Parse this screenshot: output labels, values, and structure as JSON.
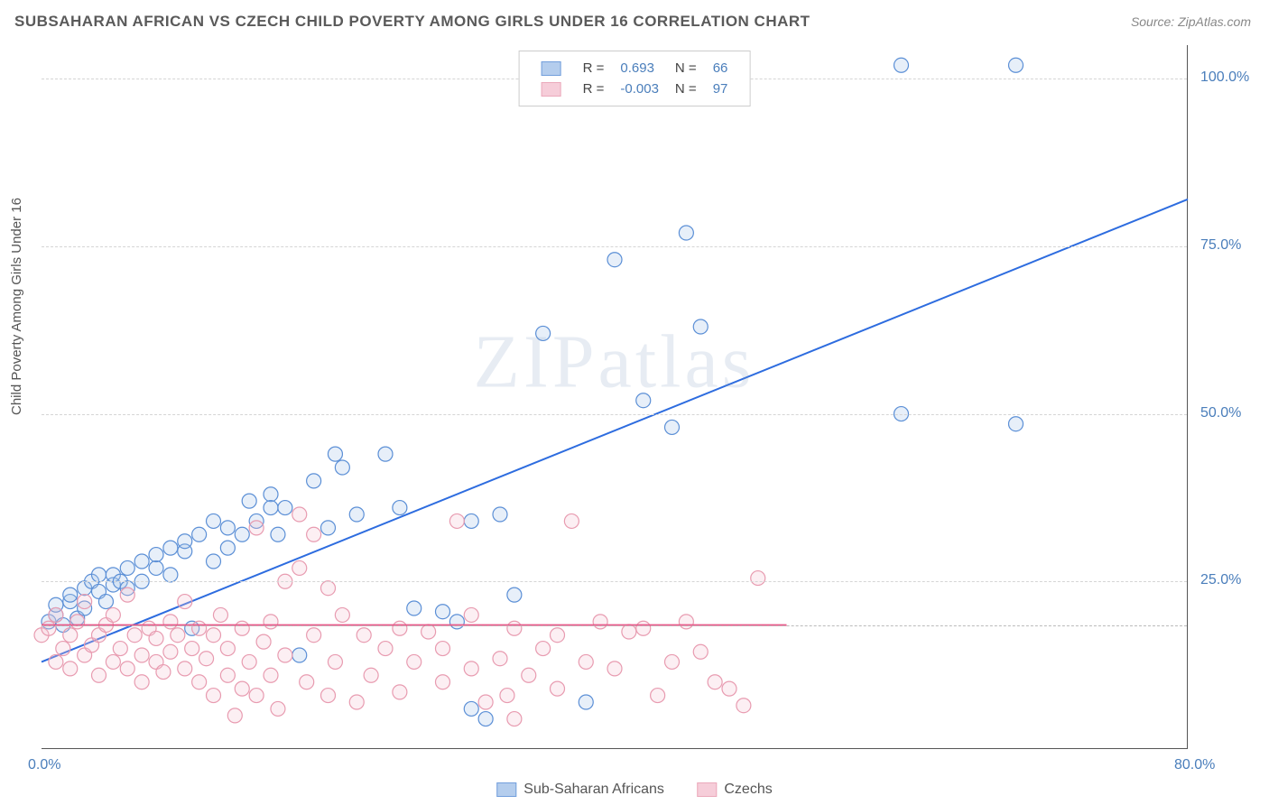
{
  "title": "SUBSAHARAN AFRICAN VS CZECH CHILD POVERTY AMONG GIRLS UNDER 16 CORRELATION CHART",
  "source": "Source: ZipAtlas.com",
  "ylabel": "Child Poverty Among Girls Under 16",
  "watermark": "ZIPatlas",
  "chart": {
    "type": "scatter",
    "xlim": [
      0,
      80
    ],
    "ylim": [
      0,
      105
    ],
    "x_ticks": [
      {
        "v": 0,
        "label": "0.0%"
      },
      {
        "v": 80,
        "label": "80.0%"
      }
    ],
    "y_ticks": [
      {
        "v": 25,
        "label": "25.0%"
      },
      {
        "v": 50,
        "label": "50.0%"
      },
      {
        "v": 75,
        "label": "75.0%"
      },
      {
        "v": 100,
        "label": "100.0%"
      }
    ],
    "zero_line_y": 18.5,
    "background": "#ffffff",
    "grid_color": "#d5d5d5",
    "marker_radius": 8,
    "marker_stroke_width": 1.2,
    "marker_fill_opacity": 0.28,
    "line_width": 2,
    "series": [
      {
        "name": "Sub-Saharan Africans",
        "color_stroke": "#5b8fd6",
        "color_fill": "#a8c5ea",
        "line_color": "#2d6cdf",
        "R": "0.693",
        "N": "66",
        "regression": {
          "x1": 0,
          "y1": 13,
          "x2": 80,
          "y2": 82
        },
        "points": [
          [
            0.5,
            19
          ],
          [
            1,
            20
          ],
          [
            1,
            21.5
          ],
          [
            1.5,
            18.5
          ],
          [
            2,
            22
          ],
          [
            2,
            23
          ],
          [
            2.5,
            19.5
          ],
          [
            3,
            24
          ],
          [
            3,
            21
          ],
          [
            3.5,
            25
          ],
          [
            4,
            23.5
          ],
          [
            4,
            26
          ],
          [
            4.5,
            22
          ],
          [
            5,
            24.5
          ],
          [
            5,
            26
          ],
          [
            5.5,
            25
          ],
          [
            6,
            24
          ],
          [
            6,
            27
          ],
          [
            7,
            25
          ],
          [
            7,
            28
          ],
          [
            8,
            27
          ],
          [
            8,
            29
          ],
          [
            9,
            26
          ],
          [
            9,
            30
          ],
          [
            10,
            29.5
          ],
          [
            10.5,
            18
          ],
          [
            11,
            32
          ],
          [
            12,
            28
          ],
          [
            12,
            34
          ],
          [
            13,
            33
          ],
          [
            14,
            32
          ],
          [
            14.5,
            37
          ],
          [
            15,
            34
          ],
          [
            16,
            38
          ],
          [
            16.5,
            32
          ],
          [
            17,
            36
          ],
          [
            18,
            14
          ],
          [
            19,
            40
          ],
          [
            20,
            33
          ],
          [
            20.5,
            44
          ],
          [
            21,
            42
          ],
          [
            22,
            35
          ],
          [
            24,
            44
          ],
          [
            25,
            36
          ],
          [
            26,
            21
          ],
          [
            28,
            20.5
          ],
          [
            29,
            19
          ],
          [
            30,
            34
          ],
          [
            30,
            6
          ],
          [
            31,
            4.5
          ],
          [
            32,
            35
          ],
          [
            33,
            23
          ],
          [
            35,
            62
          ],
          [
            38,
            7
          ],
          [
            40,
            73
          ],
          [
            42,
            52
          ],
          [
            44,
            48
          ],
          [
            45,
            77
          ],
          [
            46,
            63
          ],
          [
            60,
            50
          ],
          [
            60,
            102
          ],
          [
            68,
            48.5
          ],
          [
            68,
            102
          ],
          [
            10,
            31
          ],
          [
            13,
            30
          ],
          [
            16,
            36
          ]
        ]
      },
      {
        "name": "Czechs",
        "color_stroke": "#e89bb0",
        "color_fill": "#f5c5d3",
        "line_color": "#e85a8a",
        "R": "-0.003",
        "N": "97",
        "regression": {
          "x1": 0,
          "y1": 18.5,
          "x2": 52,
          "y2": 18.5
        },
        "points": [
          [
            0,
            17
          ],
          [
            0.5,
            18
          ],
          [
            1,
            13
          ],
          [
            1,
            20
          ],
          [
            1.5,
            15
          ],
          [
            2,
            17
          ],
          [
            2,
            12
          ],
          [
            2.5,
            19
          ],
          [
            3,
            14
          ],
          [
            3,
            22
          ],
          [
            3.5,
            15.5
          ],
          [
            4,
            17
          ],
          [
            4,
            11
          ],
          [
            4.5,
            18.5
          ],
          [
            5,
            13
          ],
          [
            5,
            20
          ],
          [
            5.5,
            15
          ],
          [
            6,
            12
          ],
          [
            6,
            23
          ],
          [
            6.5,
            17
          ],
          [
            7,
            14
          ],
          [
            7,
            10
          ],
          [
            7.5,
            18
          ],
          [
            8,
            13
          ],
          [
            8,
            16.5
          ],
          [
            8.5,
            11.5
          ],
          [
            9,
            19
          ],
          [
            9,
            14.5
          ],
          [
            9.5,
            17
          ],
          [
            10,
            12
          ],
          [
            10,
            22
          ],
          [
            10.5,
            15
          ],
          [
            11,
            10
          ],
          [
            11,
            18
          ],
          [
            11.5,
            13.5
          ],
          [
            12,
            8
          ],
          [
            12,
            17
          ],
          [
            12.5,
            20
          ],
          [
            13,
            11
          ],
          [
            13,
            15
          ],
          [
            13.5,
            5
          ],
          [
            14,
            18
          ],
          [
            14,
            9
          ],
          [
            14.5,
            13
          ],
          [
            15,
            33
          ],
          [
            15,
            8
          ],
          [
            15.5,
            16
          ],
          [
            16,
            11
          ],
          [
            16,
            19
          ],
          [
            16.5,
            6
          ],
          [
            17,
            14
          ],
          [
            18,
            35
          ],
          [
            18,
            27
          ],
          [
            18.5,
            10
          ],
          [
            19,
            17
          ],
          [
            19,
            32
          ],
          [
            20,
            8
          ],
          [
            20.5,
            13
          ],
          [
            21,
            20
          ],
          [
            22,
            7
          ],
          [
            22.5,
            17
          ],
          [
            23,
            11
          ],
          [
            24,
            15
          ],
          [
            25,
            8.5
          ],
          [
            26,
            13
          ],
          [
            27,
            17.5
          ],
          [
            28,
            10
          ],
          [
            29,
            34
          ],
          [
            30,
            12
          ],
          [
            30,
            20
          ],
          [
            31,
            7
          ],
          [
            32,
            13.5
          ],
          [
            32.5,
            8
          ],
          [
            33,
            18
          ],
          [
            34,
            11
          ],
          [
            35,
            15
          ],
          [
            36,
            9
          ],
          [
            37,
            34
          ],
          [
            38,
            13
          ],
          [
            39,
            19
          ],
          [
            40,
            12
          ],
          [
            41,
            17.5
          ],
          [
            42,
            18
          ],
          [
            43,
            8
          ],
          [
            44,
            13
          ],
          [
            45,
            19
          ],
          [
            46,
            14.5
          ],
          [
            47,
            10
          ],
          [
            48,
            9
          ],
          [
            49,
            6.5
          ],
          [
            50,
            25.5
          ],
          [
            33,
            4.5
          ],
          [
            17,
            25
          ],
          [
            20,
            24
          ],
          [
            25,
            18
          ],
          [
            28,
            15
          ],
          [
            36,
            17
          ]
        ]
      }
    ]
  },
  "legend_bottom": [
    "Sub-Saharan Africans",
    "Czechs"
  ]
}
